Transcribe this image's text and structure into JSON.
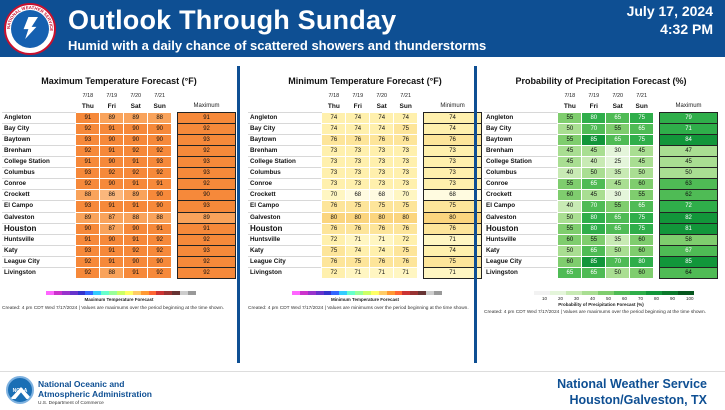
{
  "header": {
    "title": "Outlook Through Sunday",
    "subtitle": "Humid with a daily chance of scattered showers and thunderstorms",
    "date": "July 17, 2024",
    "time": "4:32 PM",
    "logo_text": "NATIONAL WEATHER SERVICE"
  },
  "colors": {
    "header_bg": "#0e4f93",
    "max_89": "#f9a35b",
    "max_hot": "#f6893a",
    "min_low": "#fff6c2",
    "min_high": "#fde59a",
    "pop_mid": "#8fd27f",
    "pop_high": "#2fae4a"
  },
  "days": {
    "dates": [
      "7/18",
      "7/19",
      "7/20",
      "7/21"
    ],
    "names": [
      "Thu",
      "Fri",
      "Sat",
      "Sun"
    ]
  },
  "panels": [
    {
      "title": "Maximum Temperature Forecast (°F)",
      "summary_header": "Maximum",
      "scale_label": "Maximum Temperature Forecast",
      "created": "Created: 4 pm CDT Wed 7/17/2024 | Values are maximums over the period beginning at the time shown.",
      "rows": [
        {
          "city": "Angleton",
          "values": [
            91,
            89,
            89,
            88
          ],
          "summary": 91
        },
        {
          "city": "Bay City",
          "values": [
            92,
            91,
            90,
            90
          ],
          "summary": 92
        },
        {
          "city": "Baytown",
          "values": [
            93,
            90,
            90,
            90
          ],
          "summary": 93
        },
        {
          "city": "Brenham",
          "values": [
            92,
            91,
            92,
            92
          ],
          "summary": 92
        },
        {
          "city": "College Station",
          "values": [
            91,
            90,
            91,
            93
          ],
          "summary": 93
        },
        {
          "city": "Columbus",
          "values": [
            93,
            92,
            92,
            92
          ],
          "summary": 93
        },
        {
          "city": "Conroe",
          "values": [
            92,
            90,
            91,
            91
          ],
          "summary": 92
        },
        {
          "city": "Crockett",
          "values": [
            88,
            86,
            89,
            90
          ],
          "summary": 90
        },
        {
          "city": "El Campo",
          "values": [
            93,
            91,
            91,
            90
          ],
          "summary": 93
        },
        {
          "city": "Galveston",
          "values": [
            89,
            87,
            88,
            88
          ],
          "summary": 89
        },
        {
          "city": "Houston",
          "values": [
            90,
            87,
            90,
            91
          ],
          "summary": 91
        },
        {
          "city": "Huntsville",
          "values": [
            91,
            90,
            91,
            92
          ],
          "summary": 92
        },
        {
          "city": "Katy",
          "values": [
            93,
            91,
            92,
            92
          ],
          "summary": 93
        },
        {
          "city": "League City",
          "values": [
            92,
            91,
            90,
            90
          ],
          "summary": 92
        },
        {
          "city": "Livingston",
          "values": [
            92,
            88,
            91,
            92
          ],
          "summary": 92
        }
      ]
    },
    {
      "title": "Minimum Temperature Forecast (°F)",
      "summary_header": "Minimum",
      "scale_label": "Minimum Temperature Forecast",
      "created": "Created: 4 pm CDT Wed 7/17/2024 | Values are minimums over the period beginning at the time shown.",
      "rows": [
        {
          "city": "Angleton",
          "values": [
            74,
            74,
            74,
            74
          ],
          "summary": 74
        },
        {
          "city": "Bay City",
          "values": [
            74,
            74,
            74,
            75
          ],
          "summary": 74
        },
        {
          "city": "Baytown",
          "values": [
            76,
            76,
            76,
            76
          ],
          "summary": 76
        },
        {
          "city": "Brenham",
          "values": [
            73,
            73,
            73,
            73
          ],
          "summary": 73
        },
        {
          "city": "College Station",
          "values": [
            73,
            73,
            73,
            73
          ],
          "summary": 73
        },
        {
          "city": "Columbus",
          "values": [
            73,
            73,
            73,
            73
          ],
          "summary": 73
        },
        {
          "city": "Conroe",
          "values": [
            73,
            73,
            73,
            73
          ],
          "summary": 73
        },
        {
          "city": "Crockett",
          "values": [
            70,
            68,
            68,
            70
          ],
          "summary": 68
        },
        {
          "city": "El Campo",
          "values": [
            76,
            75,
            75,
            75
          ],
          "summary": 75
        },
        {
          "city": "Galveston",
          "values": [
            80,
            80,
            80,
            80
          ],
          "summary": 80
        },
        {
          "city": "Houston",
          "values": [
            76,
            76,
            76,
            76
          ],
          "summary": 76
        },
        {
          "city": "Huntsville",
          "values": [
            72,
            71,
            71,
            72
          ],
          "summary": 71
        },
        {
          "city": "Katy",
          "values": [
            75,
            74,
            74,
            75
          ],
          "summary": 74
        },
        {
          "city": "League City",
          "values": [
            76,
            75,
            76,
            76
          ],
          "summary": 75
        },
        {
          "city": "Livingston",
          "values": [
            72,
            71,
            71,
            71
          ],
          "summary": 71
        }
      ]
    },
    {
      "title": "Probability of Precipitation Forecast (%)",
      "summary_header": "Maximum",
      "scale_label": "Probability of Precipitation Forecast (%)",
      "created": "Created: 4 pm CDT Wed 7/17/2024 | Values are maximums over the period beginning at the time shown.",
      "scale_ticks": [
        "10",
        "20",
        "30",
        "40",
        "50",
        "60",
        "70",
        "80",
        "90",
        "100"
      ],
      "rows": [
        {
          "city": "Angleton",
          "values": [
            55,
            80,
            65,
            75
          ],
          "summary": 79
        },
        {
          "city": "Bay City",
          "values": [
            50,
            70,
            55,
            65
          ],
          "summary": 71
        },
        {
          "city": "Baytown",
          "values": [
            55,
            85,
            65,
            75
          ],
          "summary": 84
        },
        {
          "city": "Brenham",
          "values": [
            45,
            45,
            30,
            45
          ],
          "summary": 47
        },
        {
          "city": "College Station",
          "values": [
            45,
            40,
            25,
            45
          ],
          "summary": 45
        },
        {
          "city": "Columbus",
          "values": [
            40,
            50,
            35,
            50
          ],
          "summary": 50
        },
        {
          "city": "Conroe",
          "values": [
            55,
            65,
            45,
            60
          ],
          "summary": 63
        },
        {
          "city": "Crockett",
          "values": [
            60,
            45,
            30,
            55
          ],
          "summary": 62
        },
        {
          "city": "El Campo",
          "values": [
            40,
            70,
            55,
            65
          ],
          "summary": 72
        },
        {
          "city": "Galveston",
          "values": [
            50,
            80,
            65,
            75
          ],
          "summary": 82
        },
        {
          "city": "Houston",
          "values": [
            55,
            80,
            65,
            75
          ],
          "summary": 81
        },
        {
          "city": "Huntsville",
          "values": [
            60,
            55,
            35,
            60
          ],
          "summary": 58
        },
        {
          "city": "Katy",
          "values": [
            50,
            65,
            50,
            60
          ],
          "summary": 67
        },
        {
          "city": "League City",
          "values": [
            60,
            85,
            70,
            80
          ],
          "summary": 85
        },
        {
          "city": "Livingston",
          "values": [
            65,
            65,
            50,
            60
          ],
          "summary": 64
        }
      ]
    }
  ],
  "footer": {
    "noaa_line1": "National Oceanic and",
    "noaa_line2": "Atmospheric Administration",
    "noaa_dept": "U.S. Department of Commerce",
    "noaa_logo_text": "NOAA",
    "nws_name": "National Weather Service",
    "nws_office": "Houston/Galveston, TX"
  }
}
